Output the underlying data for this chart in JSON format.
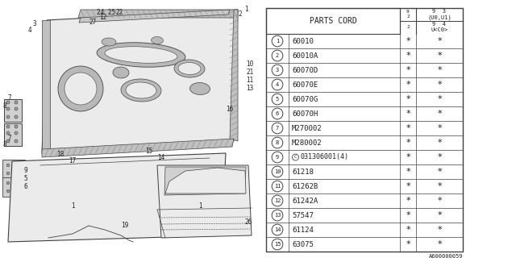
{
  "parts": [
    {
      "num": "1",
      "code": "60010",
      "circle_c": false
    },
    {
      "num": "2",
      "code": "60010A",
      "circle_c": false
    },
    {
      "num": "3",
      "code": "60070D",
      "circle_c": false
    },
    {
      "num": "4",
      "code": "60070E",
      "circle_c": false
    },
    {
      "num": "5",
      "code": "60070G",
      "circle_c": false
    },
    {
      "num": "6",
      "code": "60070H",
      "circle_c": false
    },
    {
      "num": "7",
      "code": "M270002",
      "circle_c": false
    },
    {
      "num": "8",
      "code": "M280002",
      "circle_c": false
    },
    {
      "num": "9",
      "code": "031306001(4)",
      "circle_c": true
    },
    {
      "num": "10",
      "code": "61218",
      "circle_c": false
    },
    {
      "num": "11",
      "code": "61262B",
      "circle_c": false
    },
    {
      "num": "12",
      "code": "61242A",
      "circle_c": false
    },
    {
      "num": "13",
      "code": "57547",
      "circle_c": false
    },
    {
      "num": "14",
      "code": "61124",
      "circle_c": false
    },
    {
      "num": "15",
      "code": "63075",
      "circle_c": false
    }
  ],
  "footer": "A600000059",
  "bg_color": "#ffffff",
  "line_color": "#404040",
  "text_color": "#202020",
  "gray_fill": "#d8d8d8",
  "light_gray": "#ebebeb",
  "med_gray": "#c0c0c0"
}
